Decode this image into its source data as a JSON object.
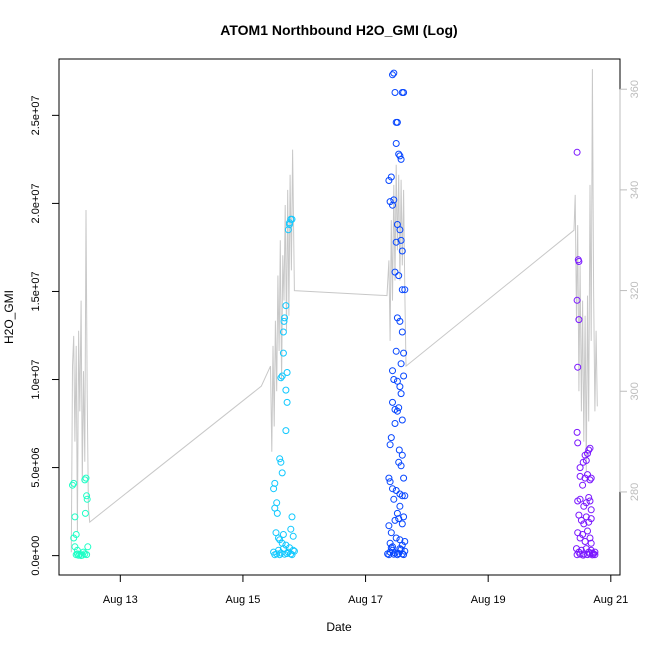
{
  "chart_data": {
    "type": "scatter",
    "title": "ATOM1 Northbound H2O_GMI (Log)",
    "xlabel": "Date",
    "ylabel": "H2O_GMI",
    "x_ticks": [
      "Aug 13",
      "Aug 15",
      "Aug 17",
      "Aug 19",
      "Aug 21"
    ],
    "x_tick_days": [
      13,
      15,
      17,
      19,
      21
    ],
    "xlim_days": [
      12.0,
      21.15
    ],
    "y_ticks": [
      "0.0e+00",
      "5.0e+06",
      "1.0e+07",
      "1.5e+07",
      "2.0e+07",
      "2.5e+07"
    ],
    "y_tick_values": [
      0,
      5000000,
      10000000,
      15000000,
      20000000,
      25000000
    ],
    "ylim": [
      -1100000,
      28200000
    ],
    "y2_ticks": [
      "280",
      "300",
      "320",
      "340",
      "360"
    ],
    "y2_tick_values": [
      280,
      300,
      320,
      340,
      360
    ],
    "y2lim": [
      263.5,
      366
    ],
    "grid": false,
    "series": [
      {
        "color": "#1DFFC6",
        "points": [
          [
            12.22,
            4000000
          ],
          [
            12.24,
            4100000
          ],
          [
            12.26,
            2200000
          ],
          [
            12.28,
            1200000
          ],
          [
            12.24,
            1000000
          ],
          [
            12.26,
            500000
          ],
          [
            12.3,
            300000
          ],
          [
            12.28,
            50000
          ],
          [
            12.32,
            20000
          ],
          [
            12.36,
            10000
          ],
          [
            12.38,
            30000
          ],
          [
            12.42,
            4300000
          ],
          [
            12.44,
            4400000
          ],
          [
            12.43,
            2400000
          ],
          [
            12.45,
            3400000
          ],
          [
            12.46,
            3200000
          ],
          [
            12.4,
            200000
          ],
          [
            12.42,
            100000
          ],
          [
            12.45,
            60000
          ],
          [
            12.47,
            500000
          ],
          [
            12.34,
            80000
          ],
          [
            12.3,
            100000
          ]
        ]
      },
      {
        "color": "#10C8FF",
        "points": [
          [
            15.5,
            3800000
          ],
          [
            15.52,
            4100000
          ],
          [
            15.52,
            2700000
          ],
          [
            15.55,
            3000000
          ],
          [
            15.56,
            2400000
          ],
          [
            15.54,
            1300000
          ],
          [
            15.58,
            1000000
          ],
          [
            15.6,
            900000
          ],
          [
            15.6,
            5500000
          ],
          [
            15.62,
            5300000
          ],
          [
            15.64,
            4700000
          ],
          [
            15.66,
            1200000
          ],
          [
            15.62,
            10100000
          ],
          [
            15.64,
            10200000
          ],
          [
            15.66,
            12700000
          ],
          [
            15.67,
            13300000
          ],
          [
            15.68,
            13500000
          ],
          [
            15.7,
            14200000
          ],
          [
            15.66,
            11500000
          ],
          [
            15.7,
            9400000
          ],
          [
            15.72,
            10400000
          ],
          [
            15.72,
            8700000
          ],
          [
            15.7,
            7100000
          ],
          [
            15.74,
            18500000
          ],
          [
            15.76,
            18800000
          ],
          [
            15.78,
            19100000
          ],
          [
            15.8,
            19100000
          ],
          [
            15.76,
            18900000
          ],
          [
            15.78,
            1500000
          ],
          [
            15.8,
            2200000
          ],
          [
            15.82,
            1100000
          ],
          [
            15.5,
            200000
          ],
          [
            15.55,
            100000
          ],
          [
            15.58,
            300000
          ],
          [
            15.62,
            150000
          ],
          [
            15.66,
            400000
          ],
          [
            15.7,
            600000
          ],
          [
            15.74,
            200000
          ],
          [
            15.78,
            100000
          ],
          [
            15.82,
            300000
          ],
          [
            15.6,
            50000
          ],
          [
            15.68,
            80000
          ],
          [
            15.72,
            120000
          ],
          [
            15.76,
            450000
          ],
          [
            15.8,
            50000
          ],
          [
            15.84,
            250000
          ],
          [
            15.52,
            50000
          ],
          [
            15.64,
            700000
          ]
        ]
      },
      {
        "color": "#0646FF",
        "points": [
          [
            17.38,
            21300000
          ],
          [
            17.4,
            20100000
          ],
          [
            17.42,
            21500000
          ],
          [
            17.44,
            27300000
          ],
          [
            17.46,
            27400000
          ],
          [
            17.48,
            26300000
          ],
          [
            17.5,
            24600000
          ],
          [
            17.52,
            24600000
          ],
          [
            17.54,
            22800000
          ],
          [
            17.56,
            22700000
          ],
          [
            17.5,
            23400000
          ],
          [
            17.58,
            22500000
          ],
          [
            17.6,
            26300000
          ],
          [
            17.62,
            26300000
          ],
          [
            17.44,
            19900000
          ],
          [
            17.46,
            20200000
          ],
          [
            17.52,
            18800000
          ],
          [
            17.56,
            18500000
          ],
          [
            17.6,
            17300000
          ],
          [
            17.5,
            17800000
          ],
          [
            17.58,
            17900000
          ],
          [
            17.48,
            16100000
          ],
          [
            17.54,
            15900000
          ],
          [
            17.6,
            15100000
          ],
          [
            17.64,
            15100000
          ],
          [
            17.52,
            13500000
          ],
          [
            17.56,
            13300000
          ],
          [
            17.6,
            12700000
          ],
          [
            17.62,
            11500000
          ],
          [
            17.5,
            11600000
          ],
          [
            17.44,
            10500000
          ],
          [
            17.46,
            10000000
          ],
          [
            17.52,
            9900000
          ],
          [
            17.56,
            9600000
          ],
          [
            17.58,
            10900000
          ],
          [
            17.62,
            10200000
          ],
          [
            17.44,
            8700000
          ],
          [
            17.48,
            8300000
          ],
          [
            17.52,
            8200000
          ],
          [
            17.54,
            8400000
          ],
          [
            17.58,
            9200000
          ],
          [
            17.6,
            7700000
          ],
          [
            17.48,
            7500000
          ],
          [
            17.4,
            6300000
          ],
          [
            17.42,
            6700000
          ],
          [
            17.55,
            6000000
          ],
          [
            17.6,
            5700000
          ],
          [
            17.54,
            5300000
          ],
          [
            17.58,
            5100000
          ],
          [
            17.62,
            4400000
          ],
          [
            17.38,
            4400000
          ],
          [
            17.4,
            4200000
          ],
          [
            17.44,
            3800000
          ],
          [
            17.5,
            3700000
          ],
          [
            17.56,
            3500000
          ],
          [
            17.6,
            3400000
          ],
          [
            17.64,
            3400000
          ],
          [
            17.46,
            3200000
          ],
          [
            17.52,
            2400000
          ],
          [
            17.56,
            2800000
          ],
          [
            17.38,
            1700000
          ],
          [
            17.42,
            1300000
          ],
          [
            17.48,
            2000000
          ],
          [
            17.54,
            2100000
          ],
          [
            17.6,
            1800000
          ],
          [
            17.62,
            2200000
          ],
          [
            17.4,
            700000
          ],
          [
            17.44,
            500000
          ],
          [
            17.5,
            1000000
          ],
          [
            17.56,
            900000
          ],
          [
            17.6,
            600000
          ],
          [
            17.64,
            800000
          ],
          [
            17.36,
            100000
          ],
          [
            17.4,
            200000
          ],
          [
            17.44,
            300000
          ],
          [
            17.48,
            150000
          ],
          [
            17.52,
            50000
          ],
          [
            17.56,
            400000
          ],
          [
            17.6,
            100000
          ],
          [
            17.64,
            250000
          ],
          [
            17.38,
            50000
          ],
          [
            17.46,
            80000
          ],
          [
            17.54,
            120000
          ],
          [
            17.62,
            60000
          ],
          [
            17.42,
            450000
          ],
          [
            17.58,
            350000
          ]
        ]
      },
      {
        "color": "#7A17FF",
        "points": [
          [
            20.45,
            22900000
          ],
          [
            20.47,
            16800000
          ],
          [
            20.48,
            16700000
          ],
          [
            20.45,
            14500000
          ],
          [
            20.48,
            13400000
          ],
          [
            20.46,
            10700000
          ],
          [
            20.45,
            7000000
          ],
          [
            20.46,
            6400000
          ],
          [
            20.5,
            5000000
          ],
          [
            20.55,
            5300000
          ],
          [
            20.58,
            5700000
          ],
          [
            20.6,
            5400000
          ],
          [
            20.62,
            5800000
          ],
          [
            20.64,
            6000000
          ],
          [
            20.66,
            6100000
          ],
          [
            20.5,
            4500000
          ],
          [
            20.54,
            4000000
          ],
          [
            20.58,
            4400000
          ],
          [
            20.62,
            4600000
          ],
          [
            20.66,
            4300000
          ],
          [
            20.68,
            4400000
          ],
          [
            20.46,
            3100000
          ],
          [
            20.5,
            3200000
          ],
          [
            20.56,
            2800000
          ],
          [
            20.6,
            3000000
          ],
          [
            20.64,
            3300000
          ],
          [
            20.66,
            3100000
          ],
          [
            20.68,
            2600000
          ],
          [
            20.48,
            2300000
          ],
          [
            20.52,
            2000000
          ],
          [
            20.56,
            1800000
          ],
          [
            20.6,
            2200000
          ],
          [
            20.64,
            1900000
          ],
          [
            20.68,
            2100000
          ],
          [
            20.46,
            1300000
          ],
          [
            20.5,
            1000000
          ],
          [
            20.54,
            1200000
          ],
          [
            20.58,
            800000
          ],
          [
            20.62,
            1400000
          ],
          [
            20.66,
            1000000
          ],
          [
            20.68,
            700000
          ],
          [
            20.44,
            400000
          ],
          [
            20.48,
            200000
          ],
          [
            20.52,
            300000
          ],
          [
            20.56,
            100000
          ],
          [
            20.6,
            400000
          ],
          [
            20.64,
            200000
          ],
          [
            20.66,
            100000
          ],
          [
            20.68,
            300000
          ],
          [
            20.7,
            150000
          ],
          [
            20.45,
            50000
          ],
          [
            20.5,
            80000
          ],
          [
            20.55,
            30000
          ],
          [
            20.62,
            60000
          ],
          [
            20.7,
            40000
          ],
          [
            20.72,
            100000
          ],
          [
            20.74,
            200000
          ],
          [
            20.74,
            50000
          ]
        ]
      }
    ],
    "secondary_line": {
      "color": "#C8C8C8",
      "axis": "right",
      "points": [
        [
          12.2,
          268
        ],
        [
          12.22,
          305
        ],
        [
          12.24,
          311
        ],
        [
          12.26,
          290
        ],
        [
          12.28,
          309
        ],
        [
          12.3,
          272
        ],
        [
          12.32,
          312
        ],
        [
          12.34,
          296
        ],
        [
          12.36,
          318
        ],
        [
          12.38,
          282
        ],
        [
          12.4,
          304
        ],
        [
          12.42,
          286
        ],
        [
          12.44,
          336
        ],
        [
          12.46,
          299
        ],
        [
          12.48,
          277
        ],
        [
          12.5,
          274
        ],
        [
          15.3,
          301
        ],
        [
          15.45,
          305
        ],
        [
          15.47,
          288
        ],
        [
          15.49,
          309
        ],
        [
          15.51,
          293
        ],
        [
          15.53,
          314
        ],
        [
          15.55,
          300
        ],
        [
          15.57,
          323
        ],
        [
          15.59,
          308
        ],
        [
          15.61,
          330
        ],
        [
          15.63,
          302
        ],
        [
          15.65,
          327
        ],
        [
          15.67,
          318
        ],
        [
          15.69,
          337
        ],
        [
          15.71,
          312
        ],
        [
          15.73,
          340
        ],
        [
          15.75,
          315
        ],
        [
          15.77,
          343
        ],
        [
          15.79,
          324
        ],
        [
          15.81,
          348
        ],
        [
          15.84,
          320
        ],
        [
          17.35,
          319
        ],
        [
          17.38,
          326
        ],
        [
          17.4,
          310
        ],
        [
          17.42,
          334
        ],
        [
          17.44,
          318
        ],
        [
          17.46,
          341
        ],
        [
          17.48,
          322
        ],
        [
          17.5,
          345
        ],
        [
          17.52,
          328
        ],
        [
          17.54,
          343
        ],
        [
          17.56,
          322
        ],
        [
          17.58,
          342
        ],
        [
          17.6,
          325
        ],
        [
          17.62,
          340
        ],
        [
          17.64,
          320
        ],
        [
          17.66,
          305
        ],
        [
          20.4,
          332
        ],
        [
          20.42,
          339
        ],
        [
          20.44,
          314
        ],
        [
          20.46,
          333
        ],
        [
          20.48,
          300
        ],
        [
          20.5,
          325
        ],
        [
          20.52,
          296
        ],
        [
          20.54,
          318
        ],
        [
          20.56,
          290
        ],
        [
          20.58,
          315
        ],
        [
          20.6,
          284
        ],
        [
          20.62,
          319
        ],
        [
          20.64,
          294
        ],
        [
          20.66,
          341
        ],
        [
          20.68,
          310
        ],
        [
          20.7,
          364
        ],
        [
          20.72,
          320
        ],
        [
          20.74,
          296
        ],
        [
          20.76,
          312
        ],
        [
          20.78,
          297
        ]
      ]
    }
  }
}
